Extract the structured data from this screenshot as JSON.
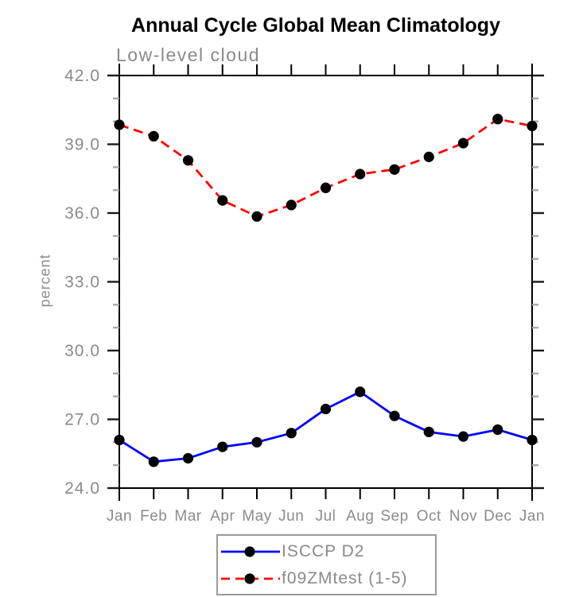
{
  "chart_data": {
    "type": "line",
    "title": "Annual Cycle Global Mean Climatology",
    "subtitle": "Low-level cloud",
    "ylabel": "percent",
    "xlabel": "",
    "categories": [
      "Jan",
      "Feb",
      "Mar",
      "Apr",
      "May",
      "Jun",
      "Jul",
      "Aug",
      "Sep",
      "Oct",
      "Nov",
      "Dec",
      "Jan"
    ],
    "series": [
      {
        "name": "ISCCP D2",
        "color": "#0000ff",
        "line_style": "solid",
        "marker": "filled-circle",
        "marker_color": "#000000",
        "values": [
          26.1,
          25.15,
          25.3,
          25.8,
          26.0,
          26.4,
          27.45,
          28.2,
          27.15,
          26.45,
          26.25,
          26.55,
          26.1
        ]
      },
      {
        "name": "f09ZMtest (1-5)",
        "color": "#ff0000",
        "line_style": "dashed",
        "marker": "filled-circle",
        "marker_color": "#000000",
        "values": [
          39.85,
          39.35,
          38.3,
          36.55,
          35.85,
          36.35,
          37.1,
          37.7,
          37.9,
          38.45,
          39.05,
          40.1,
          39.8
        ]
      }
    ],
    "ylim": [
      24.0,
      42.0
    ],
    "ytick_major": [
      24,
      27,
      30,
      33,
      36,
      39,
      42
    ],
    "ytick_labels": [
      "24.0",
      "27.0",
      "30.0",
      "33.0",
      "36.0",
      "39.0",
      "42.0"
    ],
    "ytick_minor_step": 1.0,
    "grid": false,
    "legend_position": "bottom-center"
  },
  "colors": {
    "axis": "#000000",
    "major_tick": "#1a1a1a",
    "minor_tick": "#a8a8a8",
    "label_gray": "#8a8a8a",
    "legend_border": "#9a9a9a",
    "background": "#ffffff"
  }
}
